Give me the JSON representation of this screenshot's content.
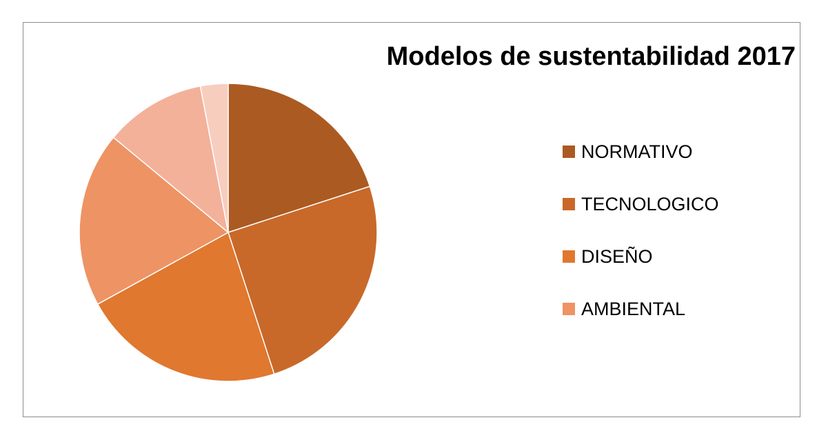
{
  "chart_data": {
    "type": "pie",
    "title": "Modelos de sustentabilidad 2017",
    "categories": [
      "NORMATIVO",
      "TECNOLOGICO",
      "DISEÑO",
      "AMBIENTAL",
      "",
      ""
    ],
    "values": [
      20,
      25,
      22,
      19,
      11,
      3
    ],
    "colors": [
      "#AB5A22",
      "#C8692A",
      "#E0782F",
      "#EE9364",
      "#F3B19A",
      "#F7CDBE"
    ],
    "legend_position": "right",
    "legend_entries": [
      {
        "label": "NORMATIVO",
        "color": "#AB5A22"
      },
      {
        "label": "TECNOLOGICO",
        "color": "#C8692A"
      },
      {
        "label": "DISEÑO",
        "color": "#E0782F"
      },
      {
        "label": "AMBIENTAL",
        "color": "#EE9364"
      }
    ]
  }
}
